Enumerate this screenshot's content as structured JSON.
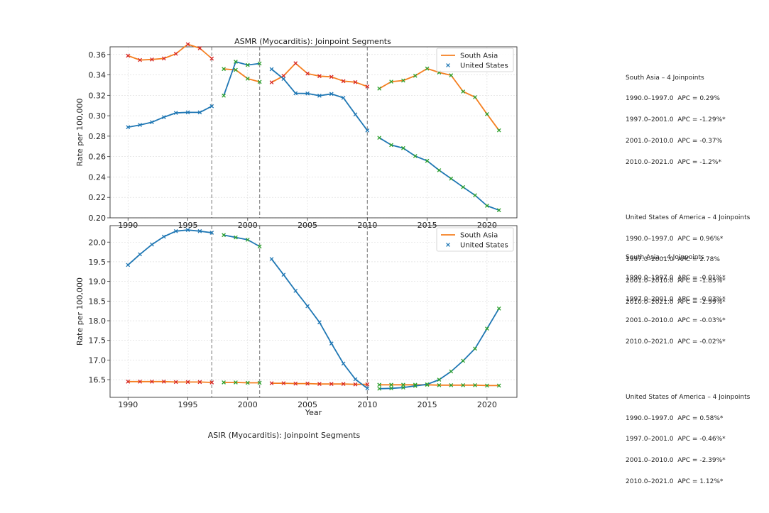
{
  "colors": {
    "south_asia": "#f57f20",
    "united_states": "#1f77b4",
    "marker_south_asia": "#d62728",
    "marker_us_alt": "#2ca02c",
    "grid": "#d9d9d9",
    "breakpoint": "#8c8c8c"
  },
  "chart_data": [
    {
      "type": "line",
      "title": "ASMR (Myocarditis): Joinpoint Segments",
      "xlabel": "",
      "ylabel": "Rate per 100,000",
      "xlim": [
        1988.5,
        2022.5
      ],
      "ylim": [
        0.2,
        0.3675
      ],
      "xticks": [
        1990,
        1995,
        2000,
        2005,
        2010,
        2015,
        2020
      ],
      "xtick_labels": [
        "1990",
        "1995",
        "2000",
        "2005",
        "2010",
        "2015",
        "2020"
      ],
      "yticks": [
        0.2,
        0.22,
        0.24,
        0.26,
        0.28,
        0.3,
        0.32,
        0.34,
        0.36
      ],
      "ytick_labels": [
        "0.20",
        "0.22",
        "0.24",
        "0.26",
        "0.28",
        "0.30",
        "0.32",
        "0.34",
        "0.36"
      ],
      "breakpoints": [
        1997,
        2001,
        2010
      ],
      "legend": {
        "position": "top-right",
        "entries": [
          {
            "label": "South Asia",
            "style": "line"
          },
          {
            "label": "United States",
            "style": "marker"
          }
        ]
      },
      "series": [
        {
          "name": "South Asia",
          "segments": [
            {
              "x": [
                1990,
                1991,
                1992,
                1993,
                1994,
                1995,
                1996,
                1997
              ],
              "y": [
                0.3588,
                0.3546,
                0.3551,
                0.3561,
                0.3607,
                0.37,
                0.3661,
                0.356
              ]
            },
            {
              "x": [
                1998,
                1999,
                2000,
                2001
              ],
              "y": [
                0.3458,
                0.3449,
                0.3363,
                0.3332
              ]
            },
            {
              "x": [
                2002,
                2003,
                2004,
                2005,
                2006,
                2007,
                2008,
                2009,
                2010
              ],
              "y": [
                0.3327,
                0.3391,
                0.3514,
                0.3413,
                0.3388,
                0.3381,
                0.3339,
                0.3329,
                0.3286
              ]
            },
            {
              "x": [
                2011,
                2012,
                2013,
                2014,
                2015,
                2016,
                2017,
                2018,
                2019,
                2020,
                2021
              ],
              "y": [
                0.3266,
                0.3334,
                0.3345,
                0.3392,
                0.3462,
                0.3424,
                0.3396,
                0.3237,
                0.3182,
                0.3016,
                0.2857
              ]
            }
          ]
        },
        {
          "name": "United States",
          "segments": [
            {
              "x": [
                1990,
                1991,
                1992,
                1993,
                1994,
                1995,
                1996,
                1997
              ],
              "y": [
                0.2888,
                0.291,
                0.2937,
                0.2986,
                0.3028,
                0.3033,
                0.3033,
                0.3093
              ]
            },
            {
              "x": [
                1998,
                1999,
                2000,
                2001
              ],
              "y": [
                0.3197,
                0.3529,
                0.3497,
                0.3512
              ]
            },
            {
              "x": [
                2002,
                2003,
                2004,
                2005,
                2006,
                2007,
                2008,
                2009,
                2010
              ],
              "y": [
                0.3456,
                0.3361,
                0.322,
                0.3218,
                0.3196,
                0.3214,
                0.3175,
                0.3013,
                0.2856
              ]
            },
            {
              "x": [
                2011,
                2012,
                2013,
                2014,
                2015,
                2016,
                2017,
                2018,
                2019,
                2020,
                2021
              ],
              "y": [
                0.2784,
                0.2713,
                0.2683,
                0.2605,
                0.2558,
                0.2466,
                0.2384,
                0.2301,
                0.2221,
                0.2118,
                0.2075
              ]
            }
          ]
        }
      ],
      "annotations": [
        [
          "South Asia – 4 Joinpoints",
          "1990.0–1997.0  APC = 0.29%",
          "1997.0–2001.0  APC = -1.29%*",
          "2001.0–2010.0  APC = -0.37%",
          "2010.0–2021.0  APC = -1.2%*"
        ],
        [
          "United States of America – 4 Joinpoints",
          "1990.0–1997.0  APC = 0.96%*",
          "1997.0–2001.0  APC = 2.78%",
          "2001.0–2010.0  APC = -1.85%*",
          "2010.0–2021.0  APC = -2.99%*"
        ]
      ]
    },
    {
      "type": "line",
      "title": "ASIR (Myocarditis): Joinpoint Segments",
      "xlabel": "Year",
      "ylabel": "Rate per 100,000",
      "xlim": [
        1988.5,
        2022.5
      ],
      "ylim": [
        16.05,
        20.42
      ],
      "xticks": [
        1990,
        1995,
        2000,
        2005,
        2010,
        2015,
        2020
      ],
      "xtick_labels": [
        "1990",
        "1995",
        "2000",
        "2005",
        "2010",
        "2015",
        "2020"
      ],
      "yticks": [
        16.5,
        17.0,
        17.5,
        18.0,
        18.5,
        19.0,
        19.5,
        20.0
      ],
      "ytick_labels": [
        "16.5",
        "17.0",
        "17.5",
        "18.0",
        "18.5",
        "19.0",
        "19.5",
        "20.0"
      ],
      "breakpoints": [
        1997,
        2001,
        2010
      ],
      "legend": {
        "position": "top-right",
        "entries": [
          {
            "label": "South Asia",
            "style": "line"
          },
          {
            "label": "United States",
            "style": "marker"
          }
        ]
      },
      "series": [
        {
          "name": "South Asia",
          "segments": [
            {
              "x": [
                1990,
                1991,
                1992,
                1993,
                1994,
                1995,
                1996,
                1997
              ],
              "y": [
                16.45,
                16.45,
                16.45,
                16.45,
                16.44,
                16.44,
                16.44,
                16.43
              ]
            },
            {
              "x": [
                1998,
                1999,
                2000,
                2001
              ],
              "y": [
                16.43,
                16.43,
                16.42,
                16.42
              ]
            },
            {
              "x": [
                2002,
                2003,
                2004,
                2005,
                2006,
                2007,
                2008,
                2009,
                2010
              ],
              "y": [
                16.41,
                16.41,
                16.4,
                16.4,
                16.39,
                16.39,
                16.39,
                16.38,
                16.38
              ]
            },
            {
              "x": [
                2011,
                2012,
                2013,
                2014,
                2015,
                2016,
                2017,
                2018,
                2019,
                2020,
                2021
              ],
              "y": [
                16.37,
                16.37,
                16.37,
                16.37,
                16.37,
                16.36,
                16.36,
                16.36,
                16.36,
                16.35,
                16.35
              ]
            }
          ]
        },
        {
          "name": "United States",
          "segments": [
            {
              "x": [
                1990,
                1991,
                1992,
                1993,
                1994,
                1995,
                1996,
                1997
              ],
              "y": [
                19.42,
                19.69,
                19.94,
                20.14,
                20.28,
                20.31,
                20.28,
                20.24
              ]
            },
            {
              "x": [
                1998,
                1999,
                2000,
                2001
              ],
              "y": [
                20.18,
                20.12,
                20.06,
                19.89
              ]
            },
            {
              "x": [
                2002,
                2003,
                2004,
                2005,
                2006,
                2007,
                2008,
                2009,
                2010
              ],
              "y": [
                19.57,
                19.17,
                18.76,
                18.37,
                17.96,
                17.42,
                16.91,
                16.51,
                16.28
              ]
            },
            {
              "x": [
                2011,
                2012,
                2013,
                2014,
                2015,
                2016,
                2017,
                2018,
                2019,
                2020,
                2021
              ],
              "y": [
                16.27,
                16.28,
                16.3,
                16.34,
                16.38,
                16.5,
                16.71,
                16.98,
                17.29,
                17.8,
                18.31
              ]
            }
          ]
        }
      ],
      "annotations": [
        [
          "South Asia – 4 Joinpoints",
          "1990.0–1997.0  APC = -0.01%*",
          "1997.0–2001.0  APC = -0.03%*",
          "2001.0–2010.0  APC = -0.03%*",
          "2010.0–2021.0  APC = -0.02%*"
        ],
        [
          "United States of America – 4 Joinpoints",
          "1990.0–1997.0  APC = 0.58%*",
          "1997.0–2001.0  APC = -0.46%*",
          "2001.0–2010.0  APC = -2.39%*",
          "2010.0–2021.0  APC = 1.12%*"
        ]
      ]
    }
  ]
}
